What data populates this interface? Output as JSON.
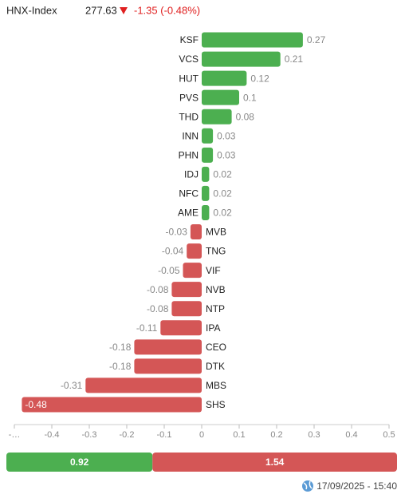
{
  "header": {
    "index": "HNX-Index",
    "value": 277.63,
    "change": "-1.35 (-0.48%)"
  },
  "chart_data": [
    {
      "type": "hbar",
      "categories": [
        "KSF",
        "VCS",
        "HUT",
        "PVS",
        "THD",
        "INN",
        "PHN",
        "IDJ",
        "NFC",
        "AME",
        "MVB",
        "TNG",
        "VIF",
        "NVB",
        "NTP",
        "IPA",
        "CEO",
        "DTK",
        "MBS",
        "SHS"
      ],
      "values": [
        0.27,
        0.21,
        0.12,
        0.1,
        0.08,
        0.03,
        0.03,
        0.02,
        0.02,
        0.02,
        -0.03,
        -0.04,
        -0.05,
        -0.08,
        -0.08,
        -0.11,
        -0.18,
        -0.18,
        -0.31,
        -0.48
      ],
      "positive_color": "#4caf50",
      "negative_color": "#d45656",
      "xlim": [
        -0.5,
        0.5
      ],
      "xticks": [
        {
          "value": -0.5,
          "label": "-…"
        },
        -0.4,
        -0.3,
        -0.2,
        -0.1,
        0,
        0.1,
        0.2,
        0.3,
        0.4,
        0.5
      ]
    },
    {
      "type": "split",
      "values": [
        0.92,
        1.54
      ],
      "colors": [
        "#4caf50",
        "#d45656"
      ]
    }
  ],
  "footer": {
    "timestamp": "17/09/2025 - 15:40"
  }
}
